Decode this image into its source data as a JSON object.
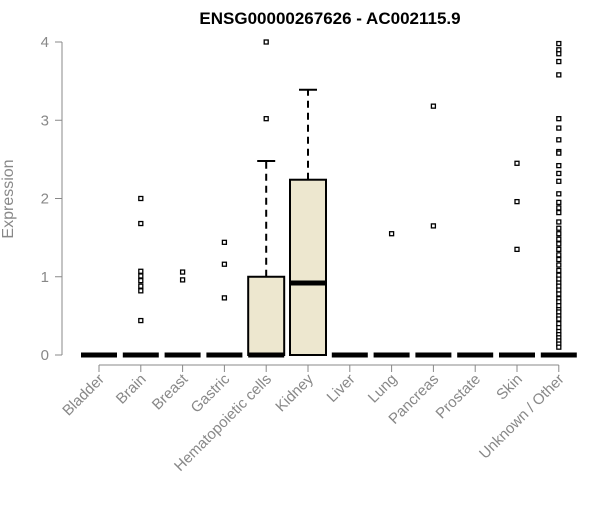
{
  "chart_data": {
    "type": "box",
    "title": "ENSG00000267626 - AC002115.9",
    "xlabel": "",
    "ylabel": "Expression",
    "ylim": [
      0,
      4
    ],
    "yticks": [
      0,
      1,
      2,
      3,
      4
    ],
    "grid": false,
    "legend": "none",
    "box_fill": "#ede7cf",
    "categories": [
      "Bladder",
      "Brain",
      "Breast",
      "Gastric",
      "Hematopoietic cells",
      "Kidney",
      "Liver",
      "Lung",
      "Pancreas",
      "Prostate",
      "Skin",
      "Unknown / Other"
    ],
    "boxes": [
      {
        "category": "Bladder",
        "q1": 0,
        "median": 0,
        "q3": 0,
        "whisker_low": 0,
        "whisker_high": 0,
        "outliers": []
      },
      {
        "category": "Brain",
        "q1": 0,
        "median": 0,
        "q3": 0,
        "whisker_low": 0,
        "whisker_high": 0,
        "outliers": [
          2.0,
          1.68,
          1.07,
          1.01,
          0.95,
          0.88,
          0.82,
          0.44
        ]
      },
      {
        "category": "Breast",
        "q1": 0,
        "median": 0,
        "q3": 0,
        "whisker_low": 0,
        "whisker_high": 0,
        "outliers": [
          1.06,
          0.96
        ]
      },
      {
        "category": "Gastric",
        "q1": 0,
        "median": 0,
        "q3": 0,
        "whisker_low": 0,
        "whisker_high": 0,
        "outliers": [
          1.44,
          1.16,
          0.73
        ]
      },
      {
        "category": "Hematopoietic cells",
        "q1": 0,
        "median": 0,
        "q3": 1.0,
        "whisker_low": 0,
        "whisker_high": 2.48,
        "outliers": [
          4.0,
          3.02
        ]
      },
      {
        "category": "Kidney",
        "q1": 0,
        "median": 0.92,
        "q3": 2.24,
        "whisker_low": 0,
        "whisker_high": 3.39,
        "outliers": []
      },
      {
        "category": "Liver",
        "q1": 0,
        "median": 0,
        "q3": 0,
        "whisker_low": 0,
        "whisker_high": 0,
        "outliers": []
      },
      {
        "category": "Lung",
        "q1": 0,
        "median": 0,
        "q3": 0,
        "whisker_low": 0,
        "whisker_high": 0,
        "outliers": [
          1.55
        ]
      },
      {
        "category": "Pancreas",
        "q1": 0,
        "median": 0,
        "q3": 0,
        "whisker_low": 0,
        "whisker_high": 0,
        "outliers": [
          3.18,
          1.65
        ]
      },
      {
        "category": "Prostate",
        "q1": 0,
        "median": 0,
        "q3": 0,
        "whisker_low": 0,
        "whisker_high": 0,
        "outliers": []
      },
      {
        "category": "Skin",
        "q1": 0,
        "median": 0,
        "q3": 0,
        "whisker_low": 0,
        "whisker_high": 0,
        "outliers": [
          2.45,
          1.96,
          1.35
        ]
      },
      {
        "category": "Unknown / Other",
        "q1": 0,
        "median": 0,
        "q3": 0,
        "whisker_low": 0,
        "whisker_high": 0,
        "outliers": [
          3.98,
          3.9,
          3.85,
          3.75,
          3.58,
          3.02,
          2.9,
          2.75,
          2.6,
          2.58,
          2.42,
          2.32,
          2.22,
          2.06,
          1.95,
          1.88,
          1.82,
          1.7,
          1.62,
          1.55,
          1.48,
          1.42,
          1.35,
          1.28,
          1.22,
          1.15,
          1.08,
          1.02,
          0.97,
          0.92,
          0.88,
          0.83,
          0.78,
          0.72,
          0.68,
          0.63,
          0.58,
          0.55,
          0.5,
          0.46,
          0.4,
          0.35,
          0.3,
          0.26,
          0.22,
          0.18,
          0.14,
          0.1
        ]
      }
    ]
  }
}
